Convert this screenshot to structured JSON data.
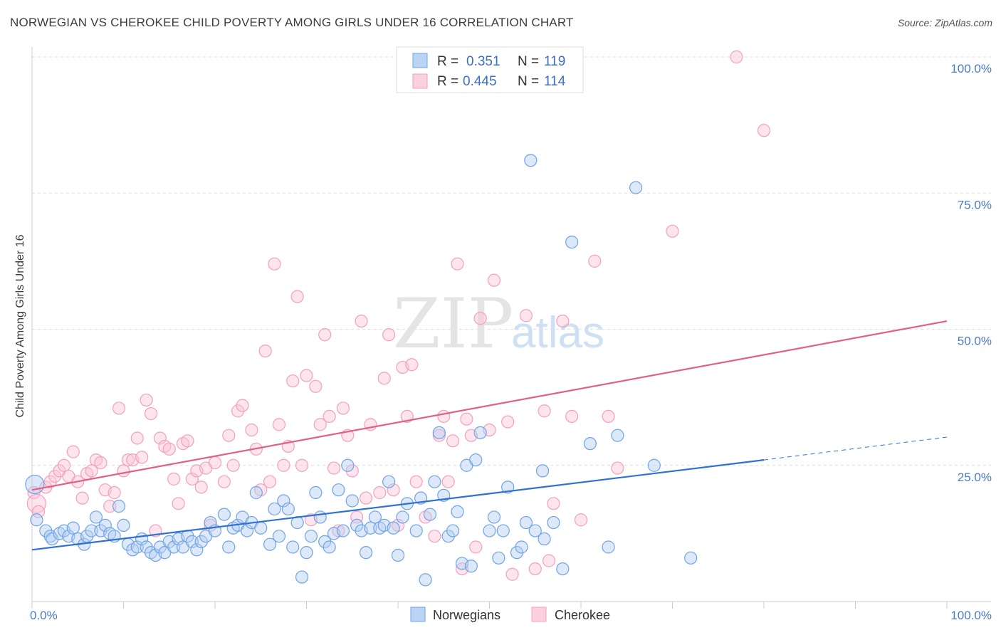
{
  "header": {
    "title": "NORWEGIAN VS CHEROKEE CHILD POVERTY AMONG GIRLS UNDER 16 CORRELATION CHART",
    "source": "Source: ZipAtlas.com"
  },
  "watermark": {
    "zip": "ZIP",
    "atlas": "atlas"
  },
  "legend_stats": [
    {
      "r_label": "R =",
      "r_value": "0.351",
      "n_label": "N =",
      "n_value": "119",
      "color": "#6fa3e6"
    },
    {
      "r_label": "R =",
      "r_value": "0.445",
      "n_label": "N =",
      "n_value": "114",
      "color": "#f2a0bd"
    }
  ],
  "chart_data": {
    "type": "scatter",
    "title": "NORWEGIAN VS CHEROKEE CHILD POVERTY AMONG GIRLS UNDER 16 CORRELATION CHART",
    "xlabel": "",
    "ylabel": "Child Poverty Among Girls Under 16",
    "xlim": [
      0,
      100
    ],
    "ylim": [
      0,
      100
    ],
    "x_tick_labels": [
      "0.0%",
      "100.0%"
    ],
    "y_ticks": [
      25,
      50,
      75,
      100
    ],
    "y_tick_labels": [
      "25.0%",
      "50.0%",
      "75.0%",
      "100.0%"
    ],
    "grid": "horizontal dashed",
    "legend": "bottom-center",
    "series": [
      {
        "name": "Norwegians",
        "color": "#6fa3e6",
        "line_color": "#2f72d0",
        "trend": {
          "x": [
            0,
            80
          ],
          "y": [
            9.5,
            26
          ]
        },
        "trend_dashed": {
          "x": [
            80,
            100
          ],
          "y": [
            26,
            30.2
          ]
        },
        "points": [
          [
            0.3,
            21.5
          ],
          [
            0.5,
            15
          ],
          [
            1.5,
            13
          ],
          [
            2,
            12
          ],
          [
            2.2,
            11.5
          ],
          [
            3,
            12.5
          ],
          [
            3.5,
            13
          ],
          [
            4,
            12
          ],
          [
            4.5,
            13.5
          ],
          [
            5,
            11.5
          ],
          [
            5.7,
            10.5
          ],
          [
            6,
            12
          ],
          [
            6.5,
            13
          ],
          [
            7,
            15.5
          ],
          [
            7.5,
            13
          ],
          [
            8,
            14
          ],
          [
            8.5,
            12.5
          ],
          [
            9,
            12
          ],
          [
            9.5,
            17.5
          ],
          [
            10,
            14
          ],
          [
            10.5,
            10.5
          ],
          [
            11,
            9.5
          ],
          [
            11.5,
            10
          ],
          [
            12,
            11.5
          ],
          [
            12.5,
            10
          ],
          [
            13,
            9
          ],
          [
            13.5,
            8.5
          ],
          [
            14,
            10
          ],
          [
            14.5,
            9
          ],
          [
            15,
            11
          ],
          [
            15.5,
            10
          ],
          [
            16,
            11.5
          ],
          [
            16.5,
            10
          ],
          [
            17,
            12
          ],
          [
            17.5,
            11
          ],
          [
            18,
            9.5
          ],
          [
            18.5,
            11
          ],
          [
            19,
            12
          ],
          [
            19.5,
            14.5
          ],
          [
            20,
            13
          ],
          [
            21,
            16
          ],
          [
            21.5,
            10
          ],
          [
            22,
            13.5
          ],
          [
            22.5,
            14
          ],
          [
            23,
            15.5
          ],
          [
            23.5,
            13
          ],
          [
            24,
            14.5
          ],
          [
            24.5,
            20
          ],
          [
            25,
            13.5
          ],
          [
            26,
            10.5
          ],
          [
            26.5,
            17
          ],
          [
            27,
            12
          ],
          [
            27.5,
            18.5
          ],
          [
            28,
            17
          ],
          [
            28.5,
            10
          ],
          [
            29,
            14.5
          ],
          [
            29.5,
            4.5
          ],
          [
            30,
            9
          ],
          [
            30.5,
            12
          ],
          [
            31,
            20
          ],
          [
            31.5,
            15.5
          ],
          [
            32,
            11
          ],
          [
            32.5,
            10
          ],
          [
            33,
            12.5
          ],
          [
            33.5,
            20.5
          ],
          [
            34,
            13
          ],
          [
            34.5,
            25
          ],
          [
            35,
            18.5
          ],
          [
            35.5,
            14
          ],
          [
            36,
            13
          ],
          [
            36.5,
            9
          ],
          [
            37,
            13.5
          ],
          [
            37.5,
            15.5
          ],
          [
            38,
            13.5
          ],
          [
            38.5,
            14
          ],
          [
            39,
            22
          ],
          [
            39.5,
            13.5
          ],
          [
            40,
            8.5
          ],
          [
            40.5,
            15.5
          ],
          [
            41,
            18
          ],
          [
            42,
            13
          ],
          [
            42.5,
            19
          ],
          [
            43,
            4
          ],
          [
            43.5,
            16
          ],
          [
            44,
            22
          ],
          [
            44.5,
            31
          ],
          [
            45,
            19.5
          ],
          [
            45.5,
            12
          ],
          [
            46,
            13
          ],
          [
            46.5,
            16.5
          ],
          [
            47,
            7
          ],
          [
            47.5,
            25
          ],
          [
            48,
            6.5
          ],
          [
            48.5,
            26
          ],
          [
            49,
            31
          ],
          [
            50,
            13
          ],
          [
            50.5,
            15.5
          ],
          [
            51,
            8
          ],
          [
            51.5,
            13
          ],
          [
            52,
            21
          ],
          [
            53,
            9
          ],
          [
            53.5,
            10
          ],
          [
            54,
            14.5
          ],
          [
            54.5,
            81
          ],
          [
            55,
            13
          ],
          [
            55.8,
            24
          ],
          [
            56,
            11.5
          ],
          [
            57,
            14.5
          ],
          [
            58,
            6
          ],
          [
            59,
            66
          ],
          [
            61,
            29
          ],
          [
            63,
            10
          ],
          [
            64,
            30.5
          ],
          [
            66,
            76
          ],
          [
            68,
            25
          ],
          [
            72,
            8
          ]
        ]
      },
      {
        "name": "Cherokee",
        "color": "#f2a0bd",
        "line_color": "#e0608a",
        "trend": {
          "x": [
            0,
            100
          ],
          "y": [
            20.5,
            51.5
          ]
        },
        "points": [
          [
            0.2,
            20
          ],
          [
            0.5,
            18
          ],
          [
            0.7,
            16.5
          ],
          [
            1.5,
            21
          ],
          [
            2,
            22
          ],
          [
            2.5,
            23
          ],
          [
            3,
            24
          ],
          [
            3.5,
            25
          ],
          [
            4,
            23
          ],
          [
            4.5,
            27.5
          ],
          [
            5,
            22
          ],
          [
            5.5,
            19
          ],
          [
            6,
            23.5
          ],
          [
            6.5,
            24
          ],
          [
            7,
            26
          ],
          [
            7.5,
            25.5
          ],
          [
            8,
            20.5
          ],
          [
            8.5,
            17.5
          ],
          [
            9,
            20
          ],
          [
            9.5,
            35.5
          ],
          [
            10,
            24
          ],
          [
            10.5,
            26
          ],
          [
            11,
            26
          ],
          [
            11.5,
            30
          ],
          [
            12,
            26.5
          ],
          [
            12.5,
            37
          ],
          [
            13,
            34.5
          ],
          [
            13.5,
            13
          ],
          [
            14,
            30
          ],
          [
            14.5,
            28.5
          ],
          [
            15,
            28
          ],
          [
            15.5,
            22.5
          ],
          [
            16,
            18
          ],
          [
            16.5,
            29
          ],
          [
            17,
            29.5
          ],
          [
            17.5,
            22.5
          ],
          [
            18,
            24
          ],
          [
            18.5,
            21
          ],
          [
            19,
            24.5
          ],
          [
            19.5,
            14
          ],
          [
            20,
            25.5
          ],
          [
            21,
            22
          ],
          [
            21.5,
            30.5
          ],
          [
            22,
            25
          ],
          [
            22.5,
            35
          ],
          [
            23,
            36
          ],
          [
            24,
            31.5
          ],
          [
            24.5,
            28
          ],
          [
            25,
            20.5
          ],
          [
            25.5,
            46
          ],
          [
            26,
            22
          ],
          [
            26.5,
            62
          ],
          [
            27,
            32.5
          ],
          [
            27.5,
            25
          ],
          [
            28,
            28.5
          ],
          [
            28.5,
            40.5
          ],
          [
            29,
            56
          ],
          [
            29.5,
            25
          ],
          [
            30,
            41.5
          ],
          [
            30.5,
            15
          ],
          [
            31,
            39.5
          ],
          [
            31.5,
            32.5
          ],
          [
            32,
            49
          ],
          [
            32.5,
            34
          ],
          [
            33,
            24.5
          ],
          [
            33.5,
            13
          ],
          [
            34,
            35.5
          ],
          [
            34.5,
            30.5
          ],
          [
            35,
            24
          ],
          [
            35.5,
            15.5
          ],
          [
            36,
            51.5
          ],
          [
            36.5,
            19
          ],
          [
            37,
            32.5
          ],
          [
            38,
            20
          ],
          [
            38.5,
            41
          ],
          [
            39,
            49
          ],
          [
            39.5,
            20.5
          ],
          [
            40,
            14
          ],
          [
            40.5,
            43
          ],
          [
            41,
            34
          ],
          [
            41.5,
            43.5
          ],
          [
            42,
            22
          ],
          [
            43,
            15.5
          ],
          [
            44,
            12
          ],
          [
            44.5,
            30.5
          ],
          [
            45,
            34
          ],
          [
            45.5,
            22
          ],
          [
            46,
            29.5
          ],
          [
            46.5,
            62
          ],
          [
            47,
            6
          ],
          [
            47.5,
            33.5
          ],
          [
            48,
            30.5
          ],
          [
            48.5,
            10
          ],
          [
            49,
            52
          ],
          [
            50,
            31.5
          ],
          [
            50.5,
            59
          ],
          [
            52,
            33
          ],
          [
            52.5,
            5
          ],
          [
            54,
            52.5
          ],
          [
            55,
            6
          ],
          [
            56,
            35
          ],
          [
            56.5,
            7.5
          ],
          [
            57,
            18
          ],
          [
            57.5,
            100
          ],
          [
            58,
            51.5
          ],
          [
            59,
            34
          ],
          [
            60,
            15
          ],
          [
            61.5,
            62.5
          ],
          [
            63,
            34
          ],
          [
            64,
            24.5
          ],
          [
            70,
            68
          ],
          [
            77,
            100
          ],
          [
            80,
            86.5
          ]
        ]
      }
    ]
  }
}
